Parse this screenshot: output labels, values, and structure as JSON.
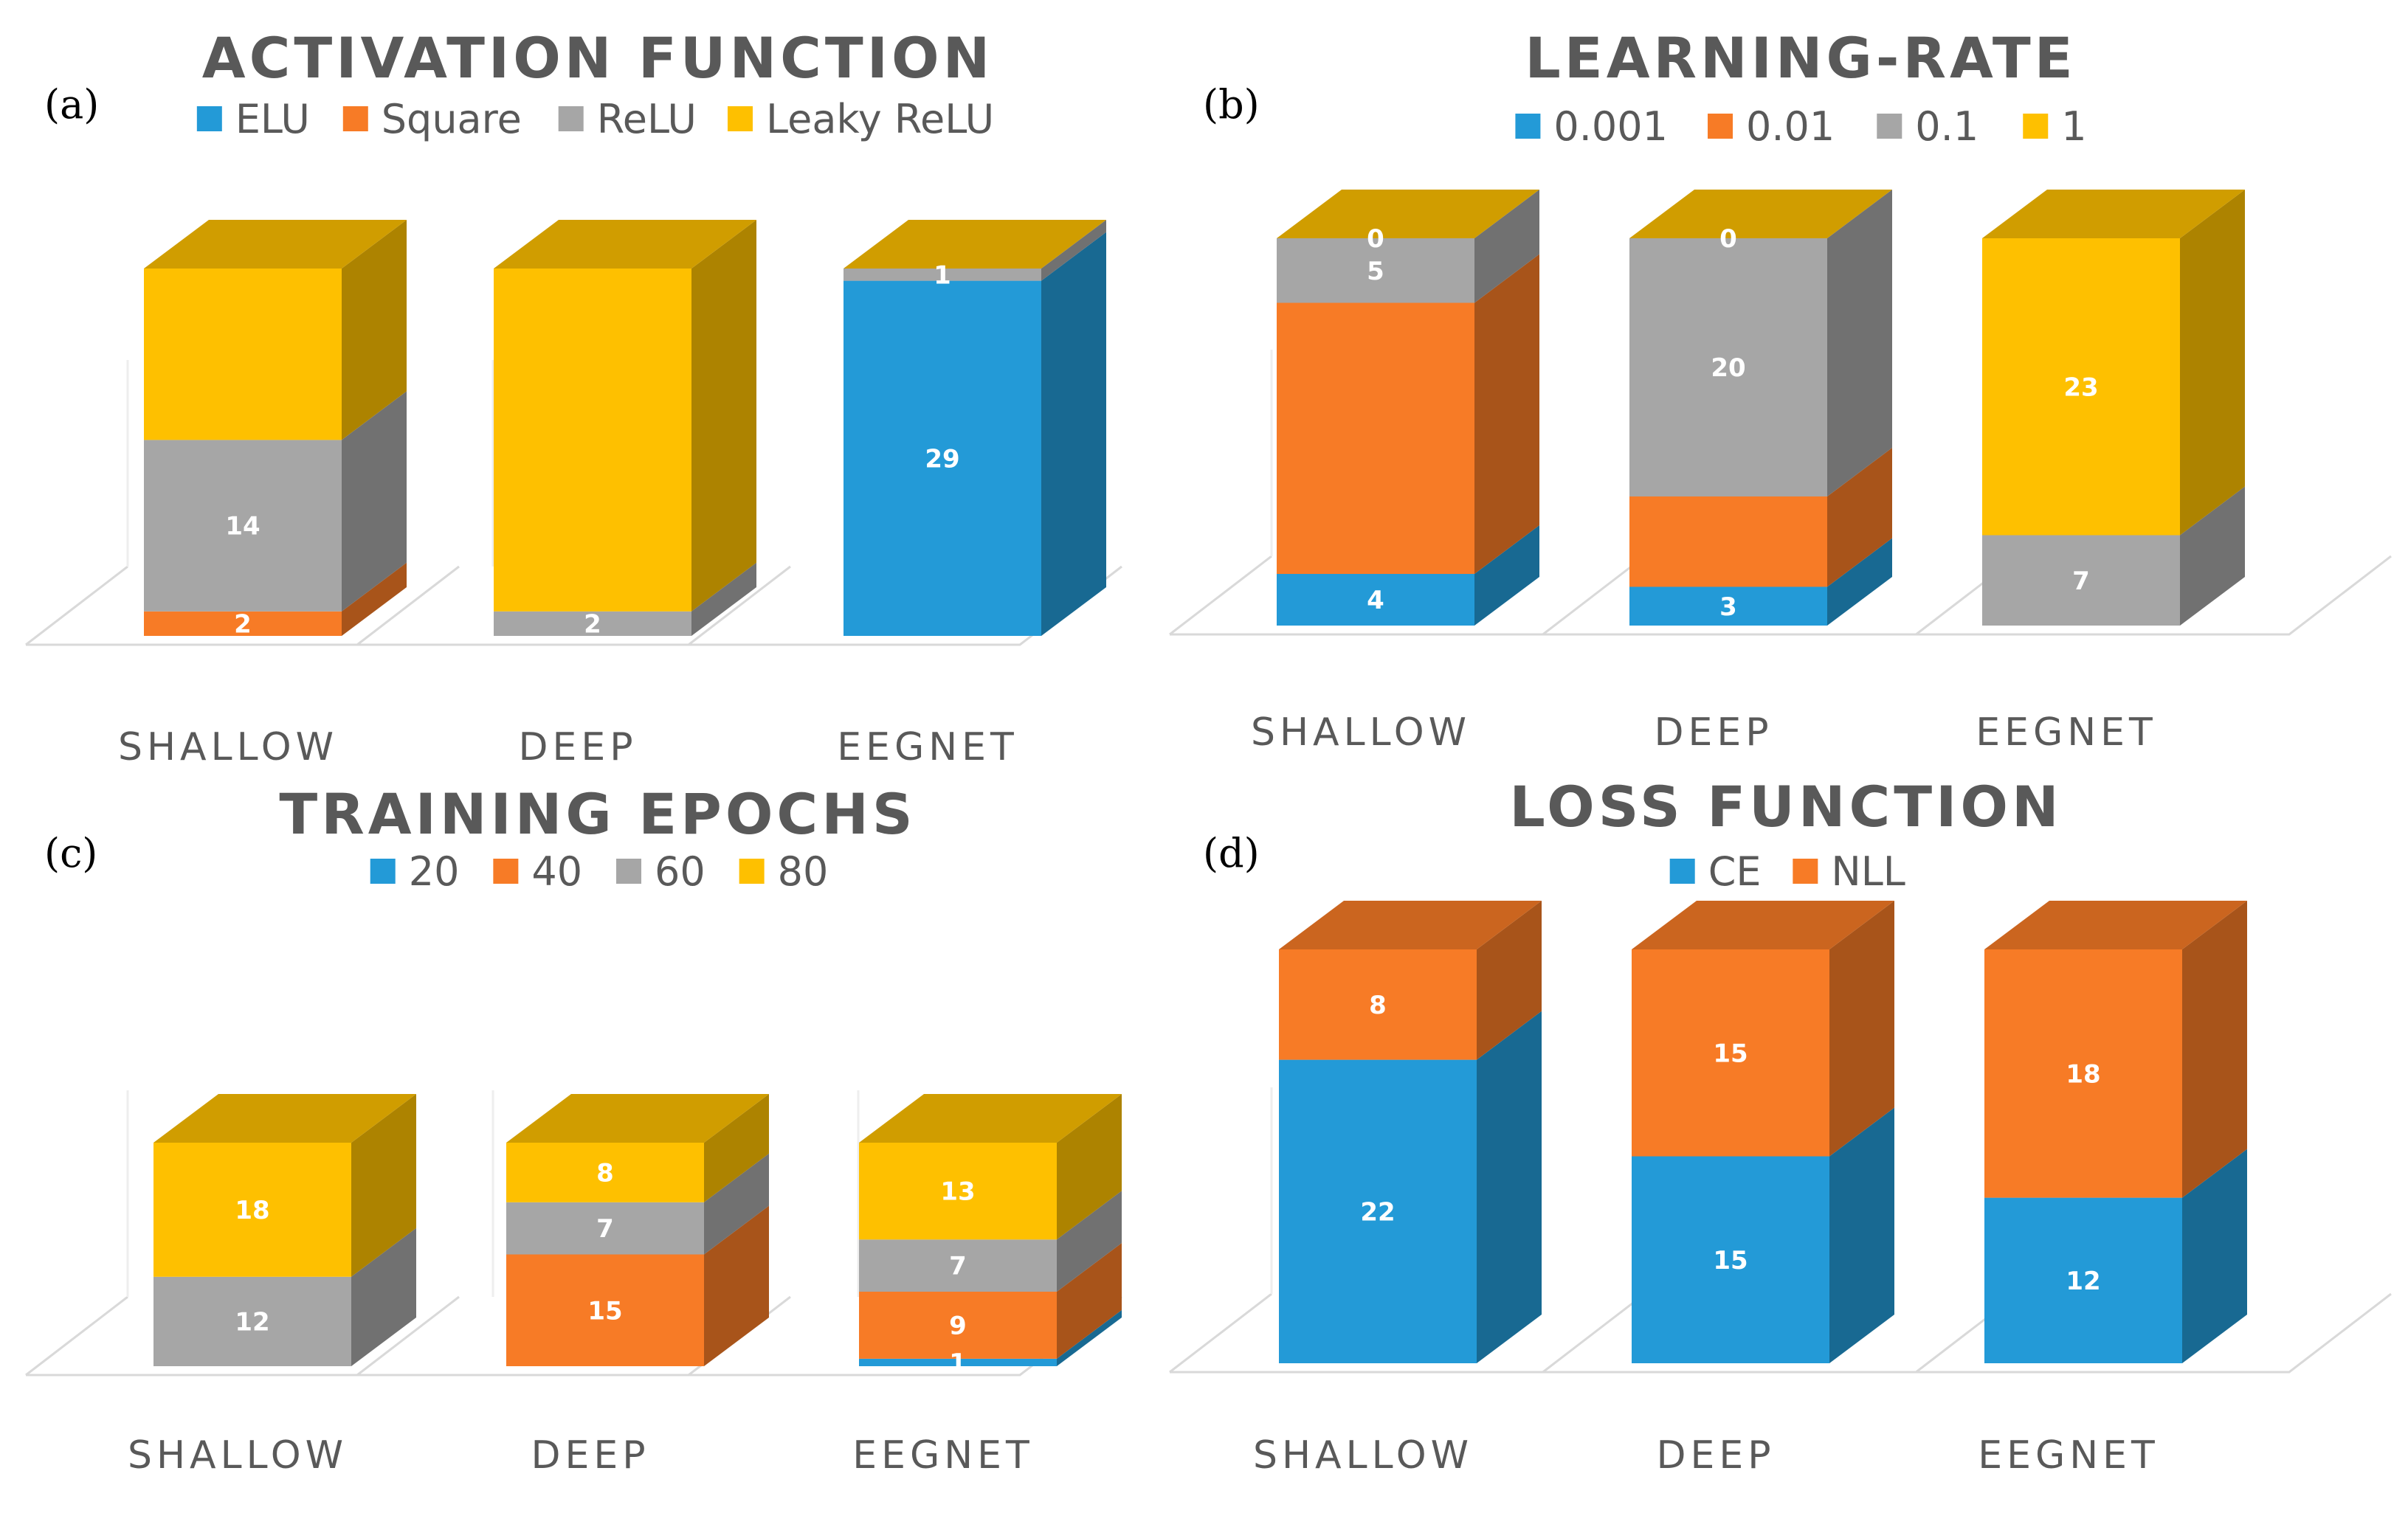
{
  "colors": {
    "blue": "#239ad7",
    "orange": "#f77b26",
    "gray": "#a6a6a6",
    "yellow": "#fec000",
    "floor": "#d9d9d9",
    "text": "#595959"
  },
  "chart_data": [
    {
      "type": "bar",
      "stacked": true,
      "three_d": true,
      "panel": "(a)",
      "title": "ACTIVATION FUNCTION",
      "legend_position": "top",
      "categories": [
        "SHALLOW",
        "DEEP",
        "EEGNET"
      ],
      "ylim": [
        0,
        30
      ],
      "grid": false,
      "series": [
        {
          "name": "ELU",
          "color": "#239ad7",
          "values": [
            0,
            0,
            29
          ],
          "labels": [
            "",
            "",
            "29"
          ]
        },
        {
          "name": "Square",
          "color": "#f77b26",
          "values": [
            2,
            0,
            0
          ],
          "labels": [
            "2",
            "",
            ""
          ]
        },
        {
          "name": "ReLU",
          "color": "#a6a6a6",
          "values": [
            14,
            2,
            1
          ],
          "labels": [
            "14",
            "2",
            "1"
          ]
        },
        {
          "name": "Leaky ReLU",
          "color": "#fec000",
          "values": [
            14,
            28,
            0
          ],
          "labels": [
            "",
            "",
            ""
          ]
        }
      ]
    },
    {
      "type": "bar",
      "stacked": true,
      "three_d": true,
      "panel": "(b)",
      "title": "LEARNING-RATE",
      "legend_position": "top",
      "categories": [
        "SHALLOW",
        "DEEP",
        "EEGNET"
      ],
      "ylim": [
        0,
        30
      ],
      "grid": false,
      "series": [
        {
          "name": "0.001",
          "color": "#239ad7",
          "values": [
            4,
            3,
            0
          ],
          "labels": [
            "4",
            "3",
            ""
          ]
        },
        {
          "name": "0.01",
          "color": "#f77b26",
          "values": [
            21,
            7,
            0
          ],
          "labels": [
            "",
            "",
            ""
          ]
        },
        {
          "name": "0.1",
          "color": "#a6a6a6",
          "values": [
            5,
            20,
            7
          ],
          "labels": [
            "5",
            "20",
            "7"
          ]
        },
        {
          "name": "1",
          "color": "#fec000",
          "values": [
            0,
            0,
            23
          ],
          "labels": [
            "0",
            "0",
            "23"
          ]
        }
      ]
    },
    {
      "type": "bar",
      "stacked": true,
      "three_d": true,
      "panel": "(c)",
      "title": "TRAINING EPOCHS",
      "legend_position": "top",
      "categories": [
        "SHALLOW",
        "DEEP",
        "EEGNET"
      ],
      "ylim": [
        0,
        30
      ],
      "grid": false,
      "series": [
        {
          "name": "20",
          "color": "#239ad7",
          "values": [
            0,
            0,
            1
          ],
          "labels": [
            "",
            "",
            "1"
          ]
        },
        {
          "name": "40",
          "color": "#f77b26",
          "values": [
            0,
            15,
            9
          ],
          "labels": [
            "",
            "15",
            "9"
          ]
        },
        {
          "name": "60",
          "color": "#a6a6a6",
          "values": [
            12,
            7,
            7
          ],
          "labels": [
            "12",
            "7",
            "7"
          ]
        },
        {
          "name": "80",
          "color": "#fec000",
          "values": [
            18,
            8,
            13
          ],
          "labels": [
            "18",
            "8",
            "13"
          ]
        }
      ]
    },
    {
      "type": "bar",
      "stacked": true,
      "three_d": true,
      "panel": "(d)",
      "title": "LOSS FUNCTION",
      "legend_position": "top",
      "categories": [
        "SHALLOW",
        "DEEP",
        "EEGNET"
      ],
      "ylim": [
        0,
        30
      ],
      "grid": false,
      "series": [
        {
          "name": "CE",
          "color": "#239ad7",
          "values": [
            22,
            15,
            12
          ],
          "labels": [
            "22",
            "15",
            "12"
          ]
        },
        {
          "name": "NLL",
          "color": "#f77b26",
          "values": [
            8,
            15,
            18
          ],
          "labels": [
            "8",
            "15",
            "18"
          ]
        }
      ]
    }
  ]
}
